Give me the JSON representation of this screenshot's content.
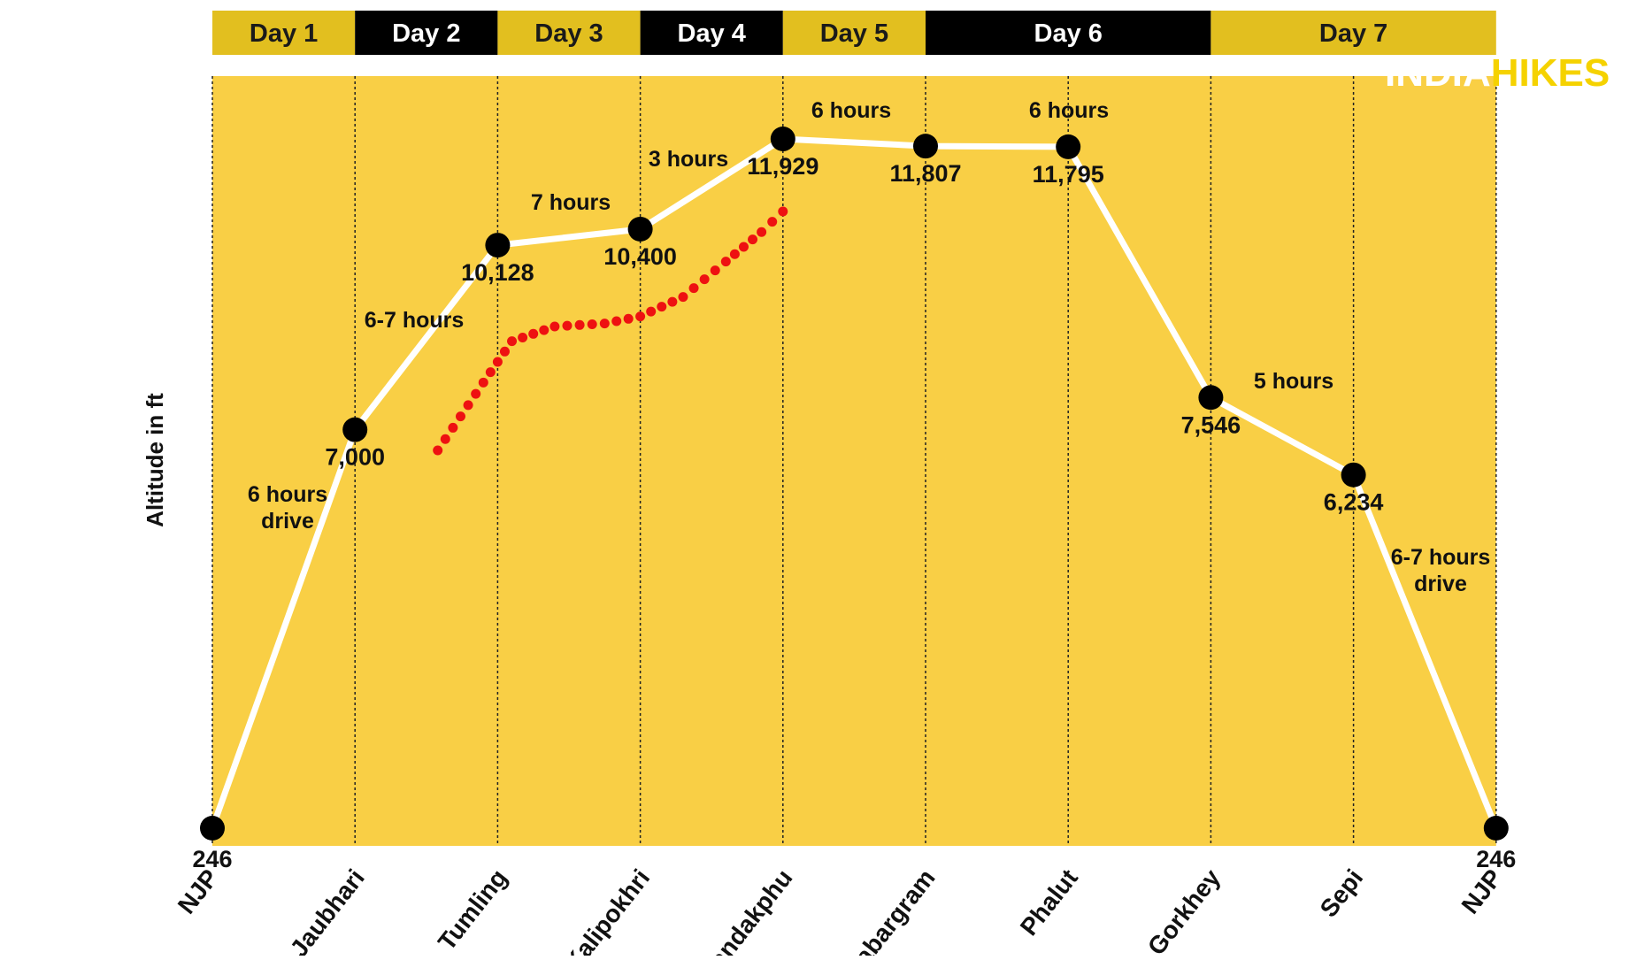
{
  "chart_data": {
    "type": "line",
    "ylabel": "Altitude in ft",
    "brand": {
      "part1": "INDIA",
      "part2": "HIKES"
    },
    "colors": {
      "background": "#f9cf45",
      "day_band_light": "#e2bf1f",
      "day_band_dark": "#000000",
      "line": "#ffffff",
      "marker": "#000000",
      "dotted_route": "#ee1111"
    },
    "days": [
      {
        "label": "Day 1",
        "start": 0,
        "end": 1,
        "style": "light"
      },
      {
        "label": "Day 2",
        "start": 1,
        "end": 2,
        "style": "dark"
      },
      {
        "label": "Day 3",
        "start": 2,
        "end": 3,
        "style": "light"
      },
      {
        "label": "Day 4",
        "start": 3,
        "end": 4,
        "style": "dark"
      },
      {
        "label": "Day 5",
        "start": 4,
        "end": 5,
        "style": "light"
      },
      {
        "label": "Day 6",
        "start": 5,
        "end": 7,
        "style": "dark"
      },
      {
        "label": "Day 7",
        "start": 7,
        "end": 9,
        "style": "light"
      }
    ],
    "points": [
      {
        "place": "NJP",
        "altitude": 246,
        "label": "246"
      },
      {
        "place": "Jaubhari",
        "altitude": 7000,
        "label": "7,000"
      },
      {
        "place": "Tumling",
        "altitude": 10128,
        "label": "10,128"
      },
      {
        "place": "Kalipokhri",
        "altitude": 10400,
        "label": "10,400"
      },
      {
        "place": "Sandakphu",
        "altitude": 11929,
        "label": "11,929"
      },
      {
        "place": "Sabargram",
        "altitude": 11807,
        "label": "11,807"
      },
      {
        "place": "Phalut",
        "altitude": 11795,
        "label": "11,795"
      },
      {
        "place": "Gorkhey",
        "altitude": 7546,
        "label": "7,546"
      },
      {
        "place": "Sepi",
        "altitude": 6234,
        "label": "6,234"
      },
      {
        "place": "NJP",
        "altitude": 246,
        "label": "246"
      }
    ],
    "durations": [
      {
        "segment": 0,
        "lines": [
          "6 hours",
          "drive"
        ]
      },
      {
        "segment": 1,
        "lines": [
          "6-7 hours"
        ]
      },
      {
        "segment": 2,
        "lines": [
          "7 hours"
        ]
      },
      {
        "segment": 3,
        "lines": [
          "3 hours"
        ]
      },
      {
        "segment": 4,
        "lines": [
          "6 hours"
        ]
      },
      {
        "segment": 5,
        "lines": [
          "6 hours"
        ]
      },
      {
        "segment": 7,
        "lines": [
          "5 hours"
        ]
      },
      {
        "segment": 8,
        "lines": [
          "6-7 hours",
          "drive"
        ]
      }
    ],
    "alternate_route": {
      "style": "dotted",
      "path": [
        {
          "x": 1.58,
          "altitude": 6650
        },
        {
          "x": 1.9,
          "altitude": 7800
        },
        {
          "x": 2.1,
          "altitude": 8500
        },
        {
          "x": 2.4,
          "altitude": 8750
        },
        {
          "x": 2.75,
          "altitude": 8800
        },
        {
          "x": 3.0,
          "altitude": 8920
        },
        {
          "x": 3.3,
          "altitude": 9250
        },
        {
          "x": 3.6,
          "altitude": 9850
        },
        {
          "x": 3.85,
          "altitude": 10350
        },
        {
          "x": 4.0,
          "altitude": 10700
        }
      ]
    },
    "ylim": [
      246,
      11929
    ]
  }
}
